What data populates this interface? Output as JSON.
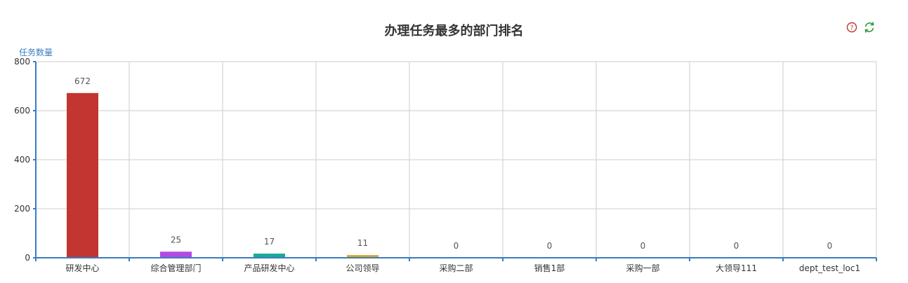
{
  "toolbar": {
    "help_icon": "help-circle-icon",
    "refresh_icon": "refresh-icon",
    "help_color": "#c23531",
    "refresh_color": "#2e9b3f"
  },
  "chart_data": {
    "type": "bar",
    "title": "办理任务最多的部门排名",
    "ylabel": "任务数量",
    "xlabel": "",
    "categories": [
      "研发中心",
      "综合管理部门",
      "产品研发中心",
      "公司领导",
      "采购二部",
      "销售1部",
      "采购一部",
      "大领导111",
      "dept_test_loc1"
    ],
    "values": [
      672,
      25,
      17,
      11,
      0,
      0,
      0,
      0,
      0
    ],
    "colors": [
      "#c23531",
      "#b549e0",
      "#1aaa99",
      "#e0a020",
      "#d48265",
      "#91c7ae",
      "#749f83",
      "#ca8622",
      "#bda29a"
    ],
    "ylim": [
      0,
      800
    ],
    "yticks": [
      0,
      200,
      400,
      600,
      800
    ],
    "grid": true,
    "show_data_labels": true
  }
}
